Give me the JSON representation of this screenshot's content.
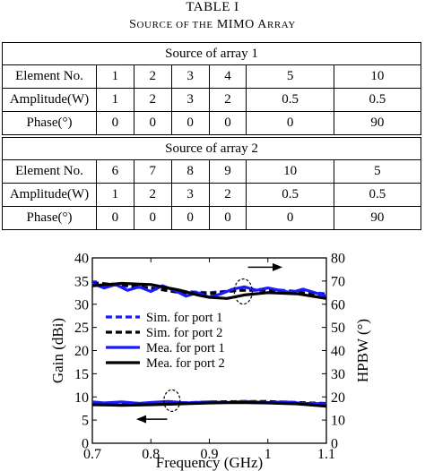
{
  "table": {
    "label": "TABLE I",
    "caption_prefix": "S",
    "caption_small": "OURCE OF THE",
    "caption_main": "MIMO A",
    "caption_small2": "RRAY",
    "groups": [
      {
        "title": "Source of array 1",
        "rows": [
          {
            "label": "Element No.",
            "cells": [
              "1",
              "2",
              "3",
              "4",
              "5",
              "10"
            ]
          },
          {
            "label": "Amplitude(W)",
            "cells": [
              "1",
              "2",
              "3",
              "2",
              "0.5",
              "0.5"
            ]
          },
          {
            "label": "Phase(°)",
            "cells": [
              "0",
              "0",
              "0",
              "0",
              "0",
              "90"
            ]
          }
        ]
      },
      {
        "title": "Source of array 2",
        "rows": [
          {
            "label": "Element No.",
            "cells": [
              "6",
              "7",
              "8",
              "9",
              "10",
              "5"
            ]
          },
          {
            "label": "Amplitude(W)",
            "cells": [
              "1",
              "2",
              "3",
              "2",
              "0.5",
              "0.5"
            ]
          },
          {
            "label": "Phase(°)",
            "cells": [
              "0",
              "0",
              "0",
              "0",
              "0",
              "90"
            ]
          }
        ]
      }
    ]
  },
  "chart_data": {
    "type": "line",
    "xlabel": "Frequency (GHz)",
    "ylabel": "Gain (dBi)",
    "y2label": "HPBW (°)",
    "xlim": [
      0.7,
      1.1
    ],
    "ylim": [
      0,
      40
    ],
    "y2lim": [
      0,
      80
    ],
    "xticks": [
      "0.7",
      "0.8",
      "0.9",
      "1",
      "1.1"
    ],
    "yticks": [
      "0",
      "5",
      "10",
      "15",
      "20",
      "25",
      "30",
      "35",
      "40"
    ],
    "y2ticks": [
      "0",
      "10",
      "20",
      "30",
      "40",
      "50",
      "60",
      "70",
      "80"
    ],
    "grid": false,
    "legend_position": "middle-left",
    "legend": [
      {
        "name": "Sim. for port 1",
        "color": "#1a1aff",
        "style": "dashed"
      },
      {
        "name": "Sim. for port 2",
        "color": "#000000",
        "style": "dashed"
      },
      {
        "name": "Mea. for port 1",
        "color": "#1a1aff",
        "style": "solid"
      },
      {
        "name": "Mea. for port 2",
        "color": "#000000",
        "style": "solid"
      }
    ],
    "gain_series": [
      {
        "name": "Sim. for port 1",
        "color": "#1a1aff",
        "style": "dashed",
        "x": [
          0.7,
          0.75,
          0.8,
          0.85,
          0.9,
          0.95,
          1.0,
          1.05,
          1.1
        ],
        "y": [
          8.7,
          8.6,
          8.6,
          8.7,
          8.8,
          8.9,
          8.9,
          8.8,
          8.6
        ]
      },
      {
        "name": "Sim. for port 2",
        "color": "#000000",
        "style": "dashed",
        "x": [
          0.7,
          0.75,
          0.8,
          0.85,
          0.9,
          0.95,
          1.0,
          1.05,
          1.1
        ],
        "y": [
          8.5,
          8.4,
          8.5,
          8.7,
          8.9,
          9.0,
          9.0,
          8.8,
          8.5
        ]
      },
      {
        "name": "Mea. for port 1",
        "color": "#1a1aff",
        "style": "solid",
        "x": [
          0.7,
          0.72,
          0.75,
          0.78,
          0.8,
          0.83,
          0.86,
          0.9,
          0.93,
          0.96,
          1.0,
          1.03,
          1.06,
          1.1
        ],
        "y": [
          8.9,
          8.7,
          8.9,
          8.6,
          8.8,
          9.0,
          8.7,
          8.9,
          8.8,
          9.0,
          8.8,
          8.9,
          8.6,
          8.5
        ]
      },
      {
        "name": "Mea. for port 2",
        "color": "#000000",
        "style": "solid",
        "x": [
          0.7,
          0.75,
          0.8,
          0.85,
          0.9,
          0.95,
          1.0,
          1.05,
          1.1
        ],
        "y": [
          8.3,
          8.2,
          8.3,
          8.5,
          8.7,
          8.8,
          8.7,
          8.5,
          8.0
        ]
      }
    ],
    "hpbw_series": [
      {
        "name": "Sim. for port 1",
        "color": "#1a1aff",
        "style": "dashed",
        "x": [
          0.7,
          0.75,
          0.8,
          0.85,
          0.9,
          0.95,
          1.0,
          1.05,
          1.1
        ],
        "y": [
          69.5,
          68.0,
          67.0,
          65.5,
          65.0,
          66.0,
          66.5,
          65.5,
          64.5
        ]
      },
      {
        "name": "Sim. for port 2",
        "color": "#000000",
        "style": "dashed",
        "x": [
          0.7,
          0.75,
          0.8,
          0.85,
          0.9,
          0.95,
          1.0,
          1.05,
          1.1
        ],
        "y": [
          69.0,
          68.5,
          67.0,
          65.0,
          64.5,
          66.0,
          66.0,
          65.0,
          64.0
        ]
      },
      {
        "name": "Mea. for port 1",
        "color": "#1a1aff",
        "style": "solid",
        "x": [
          0.7,
          0.72,
          0.74,
          0.76,
          0.78,
          0.8,
          0.82,
          0.84,
          0.86,
          0.88,
          0.9,
          0.92,
          0.94,
          0.96,
          0.98,
          1.0,
          1.02,
          1.04,
          1.06,
          1.08,
          1.1
        ],
        "y": [
          69.0,
          67.0,
          68.5,
          66.0,
          67.5,
          65.5,
          68.0,
          66.0,
          63.5,
          65.0,
          63.0,
          64.5,
          66.5,
          67.5,
          66.0,
          67.0,
          66.0,
          65.0,
          66.5,
          65.0,
          63.5
        ]
      },
      {
        "name": "Mea. for port 2",
        "color": "#000000",
        "style": "solid",
        "x": [
          0.7,
          0.75,
          0.8,
          0.85,
          0.88,
          0.9,
          0.93,
          0.96,
          1.0,
          1.05,
          1.1
        ],
        "y": [
          68.0,
          69.0,
          68.5,
          66.0,
          64.0,
          63.0,
          62.5,
          64.0,
          65.0,
          64.5,
          62.5
        ]
      }
    ]
  }
}
